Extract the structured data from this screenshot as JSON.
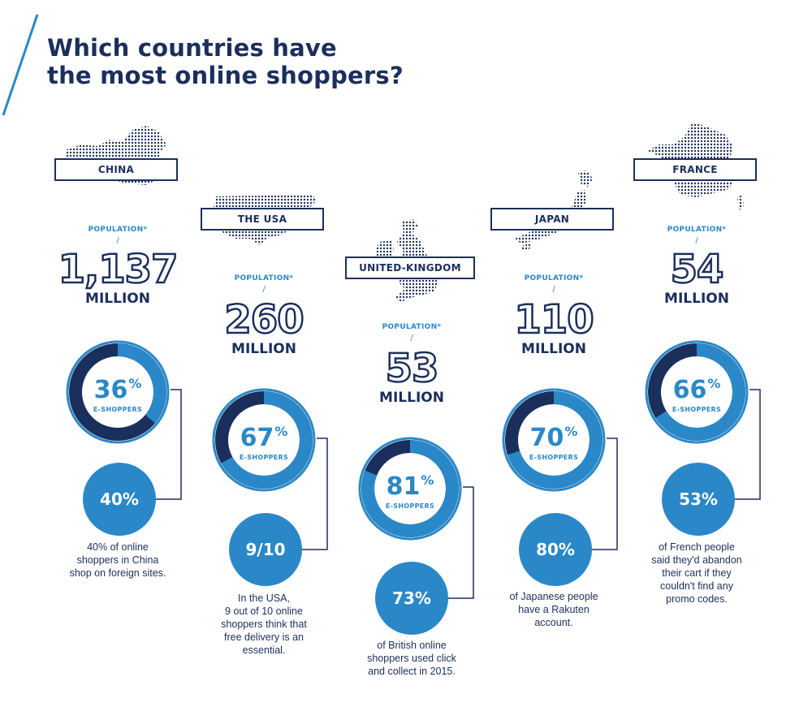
{
  "title": {
    "line1": "Which countries have",
    "line2": "the most online shoppers?"
  },
  "colors": {
    "navy": "#1b2f5c",
    "blue": "#2a88c8",
    "white": "#ffffff"
  },
  "countries": [
    {
      "name": "CHINA",
      "population_label": "POPULATION*",
      "population_slash": "/",
      "population_value": "1,137",
      "population_unit": "MILLION",
      "eshoppers_pct": 36,
      "eshoppers_pct_text": "36",
      "eshoppers_label": "E-SHOPPERS",
      "fact_value": "40%",
      "fact_lines": [
        "40% of online",
        "shoppers in China",
        "shop on foreign sites."
      ]
    },
    {
      "name": "THE USA",
      "population_label": "POPULATION*",
      "population_slash": "/",
      "population_value": "260",
      "population_unit": "MILLION",
      "eshoppers_pct": 67,
      "eshoppers_pct_text": "67",
      "eshoppers_label": "E-SHOPPERS",
      "fact_value": "9/10",
      "fact_lines": [
        "In the USA,",
        "9 out of 10 online",
        "shoppers think that",
        "free delivery is an",
        "essential."
      ]
    },
    {
      "name": "UNITED-KINGDOM",
      "population_label": "POPULATION*",
      "population_slash": "/",
      "population_value": "53",
      "population_unit": "MILLION",
      "eshoppers_pct": 81,
      "eshoppers_pct_text": "81",
      "eshoppers_label": "E-SHOPPERS",
      "fact_value": "73%",
      "fact_lines": [
        "of British online",
        "shoppers used click",
        "and collect in 2015."
      ]
    },
    {
      "name": "JAPAN",
      "population_label": "POPULATION*",
      "population_slash": "/",
      "population_value": "110",
      "population_unit": "MILLION",
      "eshoppers_pct": 70,
      "eshoppers_pct_text": "70",
      "eshoppers_label": "E-SHOPPERS",
      "fact_value": "80%",
      "fact_lines": [
        "of Japanese people",
        "have a Rakuten",
        "account."
      ]
    },
    {
      "name": "FRANCE",
      "population_label": "POPULATION*",
      "population_slash": "/",
      "population_value": "54",
      "population_unit": "MILLION",
      "eshoppers_pct": 66,
      "eshoppers_pct_text": "66",
      "eshoppers_label": "E-SHOPPERS",
      "fact_value": "53%",
      "fact_lines": [
        "of French people",
        "said they'd abandon",
        "their cart if they",
        "couldn't find any",
        "promo codes."
      ]
    }
  ]
}
